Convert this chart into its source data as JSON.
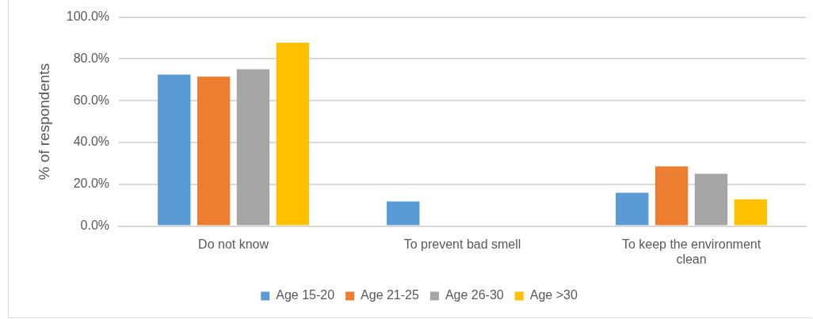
{
  "chart_data": {
    "type": "bar",
    "ylabel": "% of respondents",
    "categories": [
      "Do not know",
      "To prevent bad smell",
      "To keep the environment clean"
    ],
    "series": [
      {
        "name": "Age 15-20",
        "color": "#5b9bd5",
        "values": [
          72.5,
          11.8,
          15.9
        ]
      },
      {
        "name": "Age 21-25",
        "color": "#ed7d31",
        "values": [
          71.5,
          0,
          28.5
        ]
      },
      {
        "name": "Age 26-30",
        "color": "#a5a5a5",
        "values": [
          75.0,
          0,
          25.0
        ]
      },
      {
        "name": "Age >30",
        "color": "#ffc000",
        "values": [
          87.7,
          0,
          12.8
        ]
      }
    ],
    "ylim": [
      0,
      100
    ],
    "yticks": [
      {
        "value": 0,
        "label": "0.0%"
      },
      {
        "value": 20,
        "label": "20.0%"
      },
      {
        "value": 40,
        "label": "40.0%"
      },
      {
        "value": 60,
        "label": "60.0%"
      },
      {
        "value": 80,
        "label": "80.0%"
      },
      {
        "value": 100,
        "label": "100.0%"
      }
    ],
    "grid": "y",
    "legend": "bottom"
  }
}
